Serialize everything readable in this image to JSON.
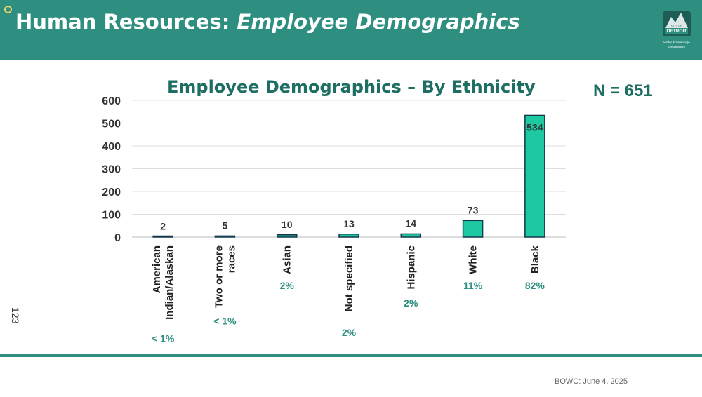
{
  "header": {
    "title_plain": "Human Resources:",
    "title_italic": "Employee Demographics",
    "logo_text_top": "CITY OF",
    "logo_text_main": "DETROIT",
    "logo_caption_1": "Water & Sewerage",
    "logo_caption_2": "Department"
  },
  "n_label": "N = 651",
  "page_number": "123",
  "footer": {
    "date": "BOWC: June 4, 2025"
  },
  "colors": {
    "banner": "#2e8f81",
    "title_text": "#1f6e63",
    "bar_fill": "#1cc9a0",
    "bar_stroke": "#14364a",
    "percent_text": "#2e8f81"
  },
  "chart_data": {
    "type": "bar",
    "title": "Employee Demographics – By Ethnicity",
    "categories": [
      [
        "American",
        "Indian/Alaskan"
      ],
      [
        "Two or more",
        "races"
      ],
      [
        "Asian"
      ],
      [
        "Not specified"
      ],
      [
        "Hispanic"
      ],
      [
        "White"
      ],
      [
        "Black"
      ]
    ],
    "values": [
      2,
      5,
      10,
      13,
      14,
      73,
      534
    ],
    "percent_labels": [
      "< 1%",
      "< 1%",
      "2%",
      "2%",
      "2%",
      "11%",
      "82%"
    ],
    "ylim": [
      0,
      600
    ],
    "yticks": [
      "0",
      "100",
      "200",
      "300",
      "400",
      "500",
      "600"
    ],
    "grid": true,
    "legend": "none"
  }
}
